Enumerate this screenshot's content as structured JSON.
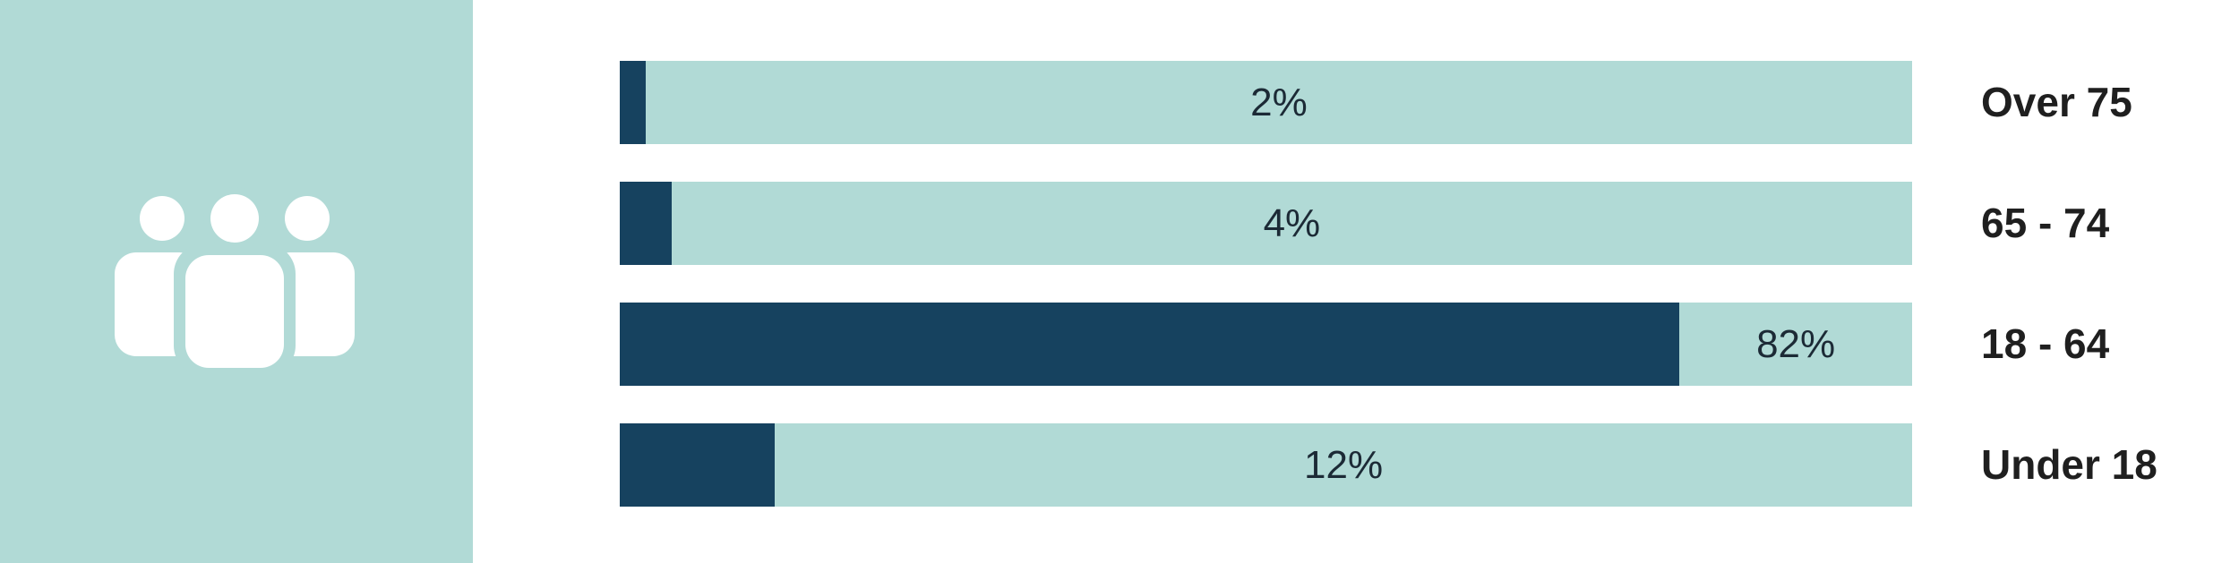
{
  "colors": {
    "panel": "#b1dad6",
    "track": "#b1dad6",
    "fill": "#16425f",
    "icon": "#ffffff"
  },
  "icon": "people-group-icon",
  "chart_data": {
    "type": "bar",
    "orientation": "horizontal",
    "stacked_to_100": true,
    "categories": [
      "Over 75",
      "65 - 74",
      "18 - 64",
      "Under 18"
    ],
    "values": [
      2,
      4,
      82,
      12
    ],
    "value_labels": [
      "2%",
      "4%",
      "82%",
      "12%"
    ],
    "xlim": [
      0,
      100
    ],
    "title": "",
    "xlabel": "",
    "ylabel": "",
    "grid": false,
    "legend": "none"
  }
}
